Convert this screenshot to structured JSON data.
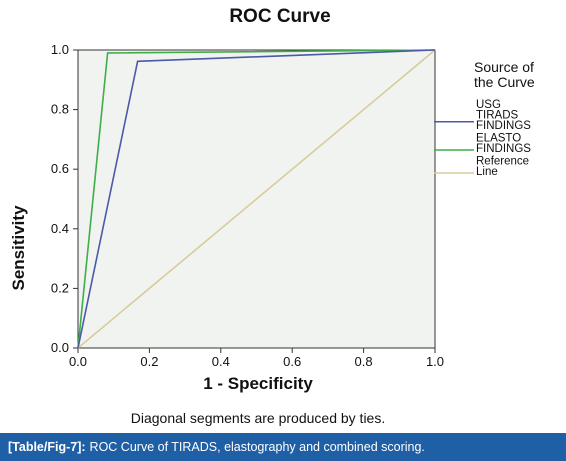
{
  "chart_data": {
    "type": "line",
    "title": "ROC Curve",
    "xlabel": "1 - Specificity",
    "ylabel": "Sensitivity",
    "xlim": [
      0,
      1
    ],
    "ylim": [
      0,
      1
    ],
    "x_ticks": [
      "0.0",
      "0.2",
      "0.4",
      "0.6",
      "0.8",
      "1.0"
    ],
    "y_ticks": [
      "0.0",
      "0.2",
      "0.4",
      "0.6",
      "0.8",
      "1.0"
    ],
    "grid": false,
    "legend_placement": "right",
    "legend_title_lines": [
      "Source of",
      "the Curve"
    ],
    "series": [
      {
        "name": "USG TIRADS FINDINGS",
        "label_lines": [
          "USG",
          "TIRADS",
          "FINDINGS"
        ],
        "color": "#4a5aa8",
        "points": [
          [
            0,
            0
          ],
          [
            0.167,
            0.962
          ],
          [
            1,
            1
          ]
        ]
      },
      {
        "name": "ELASTO FINDINGS",
        "label_lines": [
          "ELASTO",
          "FINDINGS"
        ],
        "color": "#3fae49",
        "points": [
          [
            0,
            0
          ],
          [
            0.083,
            0.99
          ],
          [
            1,
            1
          ]
        ]
      },
      {
        "name": "Reference Line",
        "label_lines": [
          "Reference",
          "Line"
        ],
        "color": "#d8cc9a",
        "points": [
          [
            0,
            0
          ],
          [
            1,
            1
          ]
        ]
      }
    ],
    "footnote": "Diagonal segments are produced by ties.",
    "plot_background": "#f1f3f1"
  },
  "caption": {
    "label": "[Table/Fig-7]:",
    "text": "ROC Curve of TIRADS, elastography and combined scoring."
  }
}
